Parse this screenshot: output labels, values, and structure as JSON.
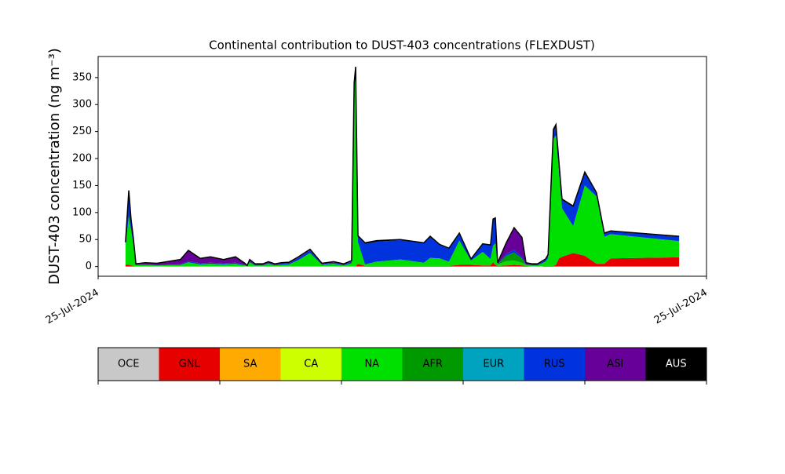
{
  "chart_data": {
    "type": "stacked_area",
    "title": "Continental contribution to DUST-403 concentrations (FLEXDUST)",
    "y_label": "DUST-403 concentration (ng m⁻³)",
    "x": [
      1.08,
      1.21,
      1.3,
      1.39,
      1.49,
      1.86,
      2.32,
      3.25,
      3.56,
      4.03,
      4.43,
      4.95,
      5.42,
      5.79,
      5.88,
      5.98,
      6.19,
      6.5,
      6.72,
      6.97,
      7.22,
      7.53,
      7.9,
      8.36,
      8.83,
      9.29,
      9.69,
      10.0,
      10.1,
      10.16,
      10.25,
      10.53,
      10.99,
      11.92,
      12.85,
      13.1,
      13.47,
      13.84,
      14.25,
      14.71,
      15.17,
      15.48,
      15.58,
      15.67,
      15.76,
      16.1,
      16.41,
      16.72,
      16.88,
      17.13,
      17.34,
      17.65,
      17.75,
      17.96,
      18.06,
      18.18,
      18.3,
      18.74,
      19.2,
      19.66,
      19.97,
      20.22,
      22.92
    ],
    "xlim": [
      0,
      24
    ],
    "xticks": [
      {
        "value": 0,
        "label": "25-Jul-2024"
      },
      {
        "value": 24,
        "label": "25-Jul-2024"
      }
    ],
    "ylim": [
      -18,
      389
    ],
    "yticks": [
      0,
      50,
      100,
      150,
      200,
      250,
      300,
      350
    ],
    "series": [
      {
        "name": "OCE",
        "color": "#c8c8c8",
        "values": [
          0,
          0,
          0,
          0,
          0,
          0,
          0,
          0,
          0,
          0,
          0,
          0,
          0,
          0,
          0,
          0,
          0,
          0,
          0,
          0,
          0,
          0,
          0,
          0,
          0,
          0,
          0,
          0,
          0,
          0,
          0,
          0,
          0,
          0,
          0,
          0,
          0,
          0,
          0,
          0,
          0,
          0,
          0,
          0,
          0,
          0,
          0,
          0,
          0,
          0,
          0,
          0,
          0,
          0,
          0,
          0,
          0,
          0,
          0,
          0,
          0,
          0,
          0
        ]
      },
      {
        "name": "GNL",
        "color": "#e60000",
        "values": [
          3,
          3,
          2,
          1,
          0,
          0,
          0,
          0,
          0,
          0,
          0,
          0,
          0,
          0,
          0,
          0,
          0,
          0,
          0,
          0,
          0,
          0,
          0,
          0,
          0,
          0,
          0,
          0,
          0,
          0,
          5,
          1,
          1,
          1,
          1,
          1,
          1,
          1,
          3,
          3,
          2,
          2,
          8,
          3,
          1,
          2,
          3,
          2,
          1,
          0,
          0,
          1,
          1,
          1,
          3,
          15,
          18,
          25,
          20,
          5,
          5,
          15,
          17
        ]
      },
      {
        "name": "SA",
        "color": "#ffaa00",
        "values": [
          0,
          0,
          0,
          0,
          0,
          0,
          0,
          0,
          0,
          0,
          0,
          0,
          0,
          0,
          0,
          0,
          0,
          0,
          0,
          0,
          0,
          0,
          0,
          0,
          0,
          0,
          0,
          0,
          0,
          0,
          0,
          0,
          0,
          0,
          0,
          0,
          0,
          0,
          0,
          0,
          0,
          0,
          0,
          0,
          0,
          0,
          0,
          0,
          0,
          0,
          0,
          0,
          0,
          0,
          0,
          0,
          0,
          0,
          0,
          0,
          0,
          0,
          0
        ]
      },
      {
        "name": "CA",
        "color": "#ccff00",
        "values": [
          0,
          0,
          0,
          0,
          0,
          0,
          0,
          0,
          0,
          0,
          0,
          0,
          0,
          0,
          0,
          0,
          0,
          0,
          0,
          0,
          0,
          0,
          0,
          0,
          0,
          0,
          0,
          0,
          0,
          0,
          0,
          0,
          0,
          0,
          0,
          0,
          0,
          0,
          0,
          0,
          0,
          0,
          0,
          0,
          0,
          0,
          0,
          0,
          0,
          0,
          0,
          0,
          0,
          0,
          0,
          0,
          0,
          0,
          0,
          0,
          0,
          0,
          0
        ]
      },
      {
        "name": "NA",
        "color": "#00e000",
        "values": [
          35,
          90,
          65,
          40,
          3,
          3,
          2,
          3,
          8,
          4,
          5,
          4,
          5,
          2,
          1,
          8,
          2,
          2,
          5,
          2,
          3,
          4,
          12,
          25,
          3,
          5,
          2,
          6,
          330,
          355,
          40,
          3,
          8,
          12,
          6,
          15,
          14,
          8,
          45,
          8,
          25,
          12,
          30,
          40,
          3,
          8,
          8,
          5,
          2,
          2,
          2,
          8,
          15,
          235,
          240,
          160,
          90,
          50,
          130,
          125,
          50,
          45,
          30
        ]
      },
      {
        "name": "AFR",
        "color": "#009900",
        "values": [
          0,
          0,
          0,
          0,
          0,
          0,
          0,
          0,
          0,
          0,
          0,
          0,
          0,
          0,
          0,
          0,
          0,
          0,
          0,
          0,
          0,
          0,
          0,
          0,
          0,
          0,
          0,
          0,
          0,
          0,
          0,
          0,
          0,
          0,
          0,
          0,
          0,
          0,
          0,
          0,
          0,
          0,
          0,
          0,
          0,
          10,
          15,
          8,
          0,
          0,
          0,
          0,
          0,
          0,
          0,
          0,
          0,
          0,
          0,
          0,
          0,
          0,
          0
        ]
      },
      {
        "name": "EUR",
        "color": "#00a3bf",
        "values": [
          0,
          0,
          0,
          0,
          0,
          0,
          0,
          0,
          0,
          0,
          0,
          0,
          0,
          0,
          0,
          0,
          0,
          0,
          0,
          0,
          0,
          0,
          0,
          0,
          0,
          0,
          0,
          0,
          0,
          0,
          0,
          0,
          0,
          0,
          0,
          0,
          0,
          0,
          0,
          0,
          0,
          0,
          0,
          0,
          0,
          0,
          0,
          0,
          0,
          0,
          0,
          0,
          0,
          0,
          0,
          0,
          0,
          0,
          0,
          0,
          0,
          0,
          0
        ]
      },
      {
        "name": "RUS",
        "color": "#0033dd",
        "values": [
          5,
          40,
          15,
          10,
          1,
          1,
          1,
          1,
          2,
          2,
          2,
          2,
          2,
          1,
          0,
          2,
          1,
          1,
          1,
          1,
          2,
          2,
          4,
          5,
          1,
          2,
          1,
          3,
          5,
          5,
          10,
          38,
          37,
          36,
          36,
          38,
          25,
          24,
          12,
          2,
          14,
          25,
          48,
          45,
          2,
          3,
          5,
          3,
          1,
          1,
          1,
          3,
          4,
          15,
          15,
          15,
          15,
          35,
          22,
          5,
          5,
          5,
          8
        ]
      },
      {
        "name": "ASI",
        "color": "#660099",
        "values": [
          0,
          0,
          0,
          0,
          0,
          2,
          2,
          8,
          18,
          8,
          10,
          6,
          10,
          2,
          0,
          2,
          1,
          1,
          2,
          1,
          1,
          1,
          1,
          1,
          1,
          1,
          1,
          1,
          0,
          0,
          0,
          0,
          0,
          0,
          0,
          0,
          0,
          0,
          0,
          0,
          0,
          0,
          0,
          0,
          0,
          20,
          40,
          35,
          2,
          1,
          1,
          1,
          1,
          0,
          0,
          0,
          0,
          0,
          0,
          0,
          0,
          0,
          0
        ]
      },
      {
        "name": "AUS",
        "color": "#000000",
        "values": [
          2,
          8,
          5,
          2,
          1,
          1,
          1,
          1,
          2,
          1,
          1,
          1,
          1,
          1,
          1,
          1,
          1,
          1,
          1,
          1,
          1,
          1,
          1,
          1,
          1,
          1,
          1,
          1,
          5,
          10,
          2,
          2,
          2,
          1,
          1,
          2,
          1,
          1,
          2,
          1,
          1,
          1,
          2,
          2,
          1,
          1,
          1,
          1,
          1,
          1,
          1,
          1,
          1,
          3,
          5,
          3,
          2,
          2,
          3,
          2,
          2,
          1,
          1
        ]
      }
    ]
  }
}
